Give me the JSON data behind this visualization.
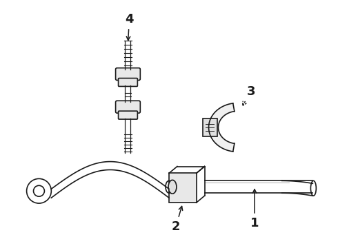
{
  "bg_color": "#ffffff",
  "line_color": "#1a1a1a",
  "label_color": "#1a1a1a",
  "fig_width": 4.9,
  "fig_height": 3.6,
  "dpi": 100,
  "label_fontsize": 13
}
